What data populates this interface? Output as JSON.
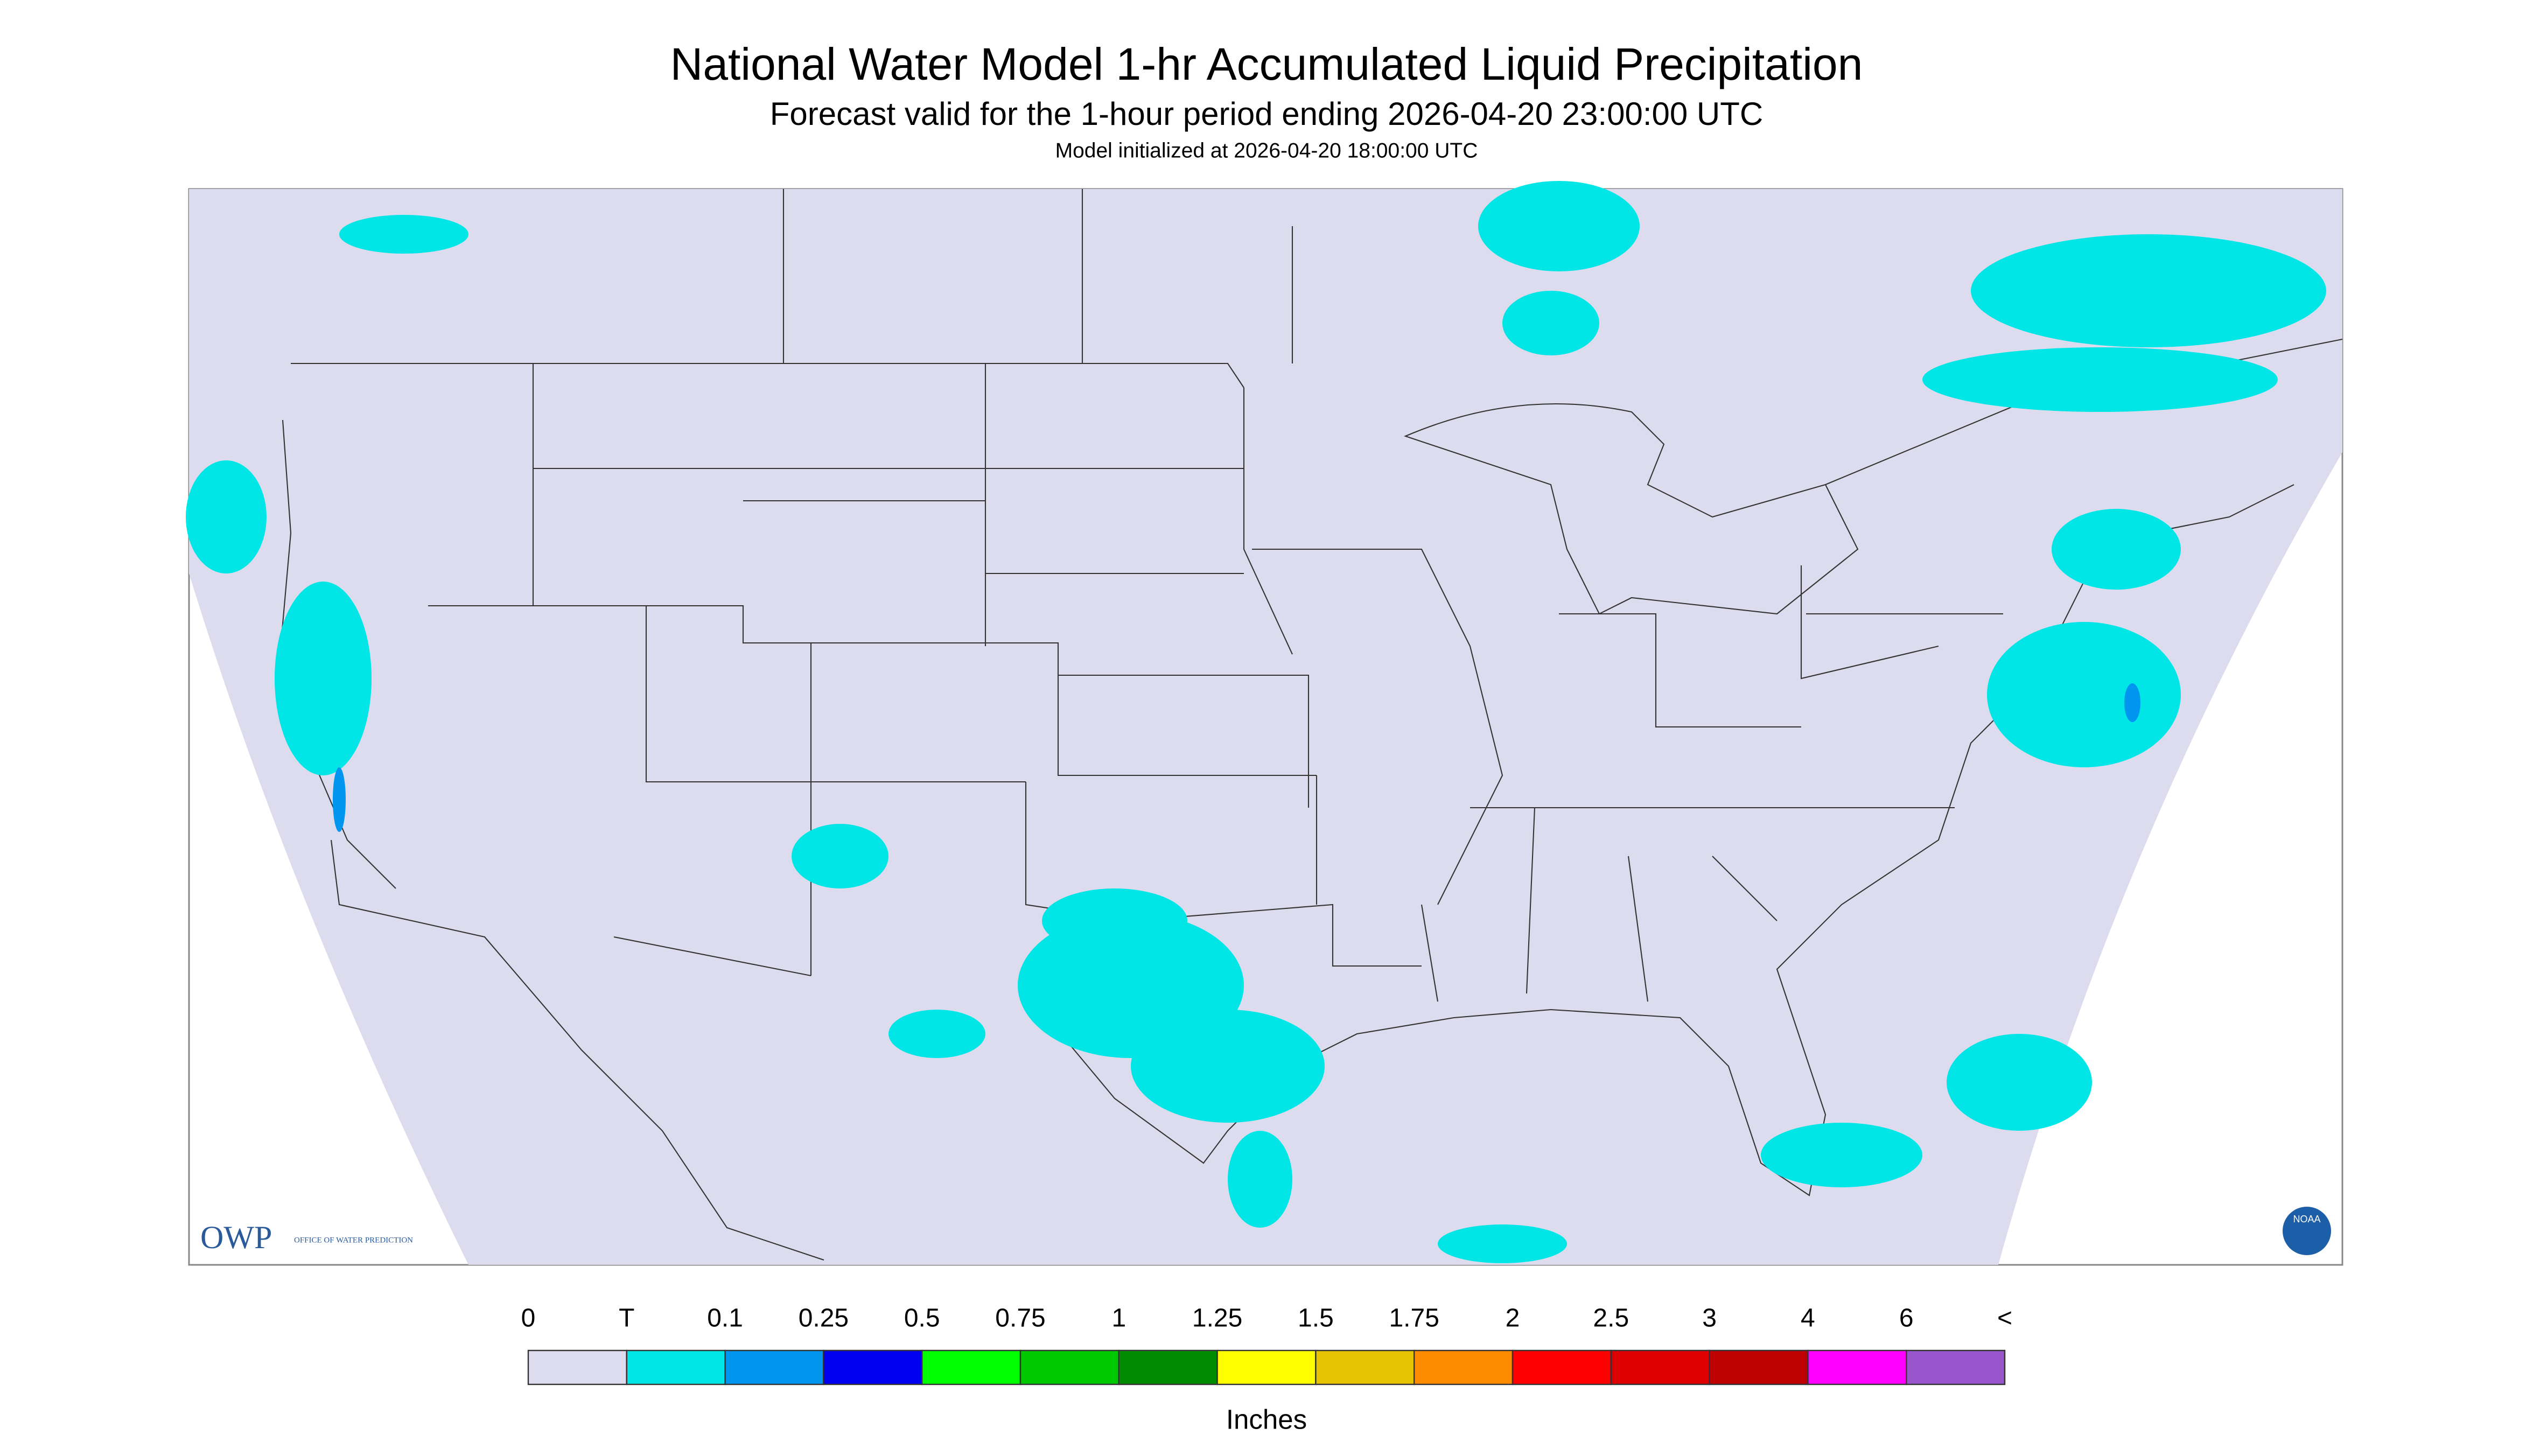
{
  "header": {
    "title": "National Water Model 1-hr Accumulated Liquid Precipitation",
    "subtitle": "Forecast valid for the 1-hour period ending 2026-04-20 23:00:00 UTC",
    "note": "Model initialized at 2026-04-20 18:00:00 UTC"
  },
  "logos": {
    "owp": "OWP",
    "owp_full": "OFFICE OF WATER PREDICTION",
    "noaa": "NOAA"
  },
  "legend": {
    "labels": [
      "0",
      "T",
      "0.1",
      "0.25",
      "0.5",
      "0.75",
      "1",
      "1.25",
      "1.5",
      "1.75",
      "2",
      "2.5",
      "3",
      "4",
      "6",
      "<"
    ],
    "colors": [
      "#dcdcee",
      "#00e6e6",
      "#0096f0",
      "#0000f0",
      "#00ff00",
      "#00c800",
      "#008c00",
      "#ffff00",
      "#e6c300",
      "#ff8c00",
      "#ff0000",
      "#dc0000",
      "#be0000",
      "#ff00ff",
      "#9955cc"
    ],
    "unit": "Inches"
  }
}
